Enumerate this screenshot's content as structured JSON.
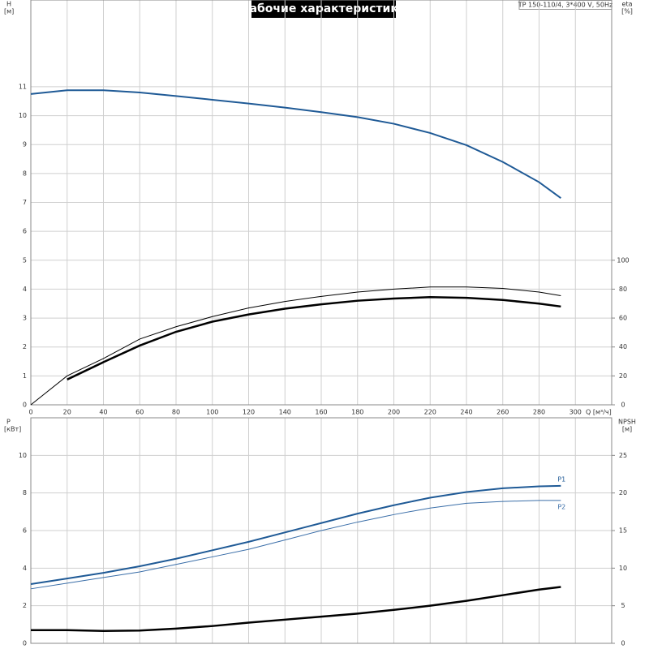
{
  "chart_data": [
    {
      "type": "line",
      "title": "Рабочие характеристики",
      "note": "TP 150-110/4, 3*400 V, 50Hz",
      "xlabel": "Q [м³/ч]",
      "ylabel": "H",
      "yunit": "[м]",
      "y2label": "eta",
      "y2unit": "[%]",
      "x": [
        0,
        20,
        40,
        60,
        80,
        100,
        120,
        140,
        160,
        180,
        200,
        220,
        240,
        260,
        280,
        292
      ],
      "xlim": [
        0,
        320
      ],
      "xticks": [
        0,
        20,
        40,
        60,
        80,
        100,
        120,
        140,
        160,
        180,
        200,
        220,
        240,
        260,
        280,
        300
      ],
      "ylim": [
        0,
        14
      ],
      "yticks": [
        0,
        1,
        2,
        3,
        4,
        5,
        6,
        7,
        8,
        9,
        10,
        11
      ],
      "y2lim": [
        0,
        280
      ],
      "y2ticks": [
        0,
        20,
        40,
        60,
        80,
        100
      ],
      "grid": true,
      "series": [
        {
          "color": "#1f5a96",
          "line_width": 2,
          "values": [
            10.75,
            10.88,
            10.88,
            10.8,
            10.68,
            10.55,
            10.42,
            10.28,
            10.12,
            9.95,
            9.72,
            9.4,
            8.98,
            8.4,
            7.7,
            7.15
          ]
        },
        {
          "color": "#000000",
          "line_width": 1,
          "axis": "y2",
          "values": [
            0,
            20,
            32,
            45.5,
            54,
            61,
            67,
            71.5,
            75,
            78,
            80,
            81.5,
            81.5,
            80.5,
            78,
            75.5
          ]
        },
        {
          "color": "#000000",
          "line_width": 2.5,
          "axis": "y2",
          "values": [
            null,
            17.5,
            29.5,
            41,
            50.5,
            57.5,
            62.5,
            66.5,
            69.5,
            72,
            73.5,
            74.5,
            74,
            72.5,
            70,
            68
          ]
        }
      ]
    },
    {
      "type": "line",
      "ylabel": "P",
      "yunit": "[кВт]",
      "y2label": "NPSH",
      "y2unit": "[м]",
      "x": [
        0,
        20,
        40,
        60,
        80,
        100,
        120,
        140,
        160,
        180,
        200,
        220,
        240,
        260,
        280,
        292
      ],
      "xlim": [
        0,
        320
      ],
      "xticks": [
        0,
        20,
        40,
        60,
        80,
        100,
        120,
        140,
        160,
        180,
        200,
        220,
        240,
        260,
        280,
        300
      ],
      "ylim": [
        0,
        12
      ],
      "yticks": [
        0,
        2,
        4,
        6,
        8,
        10
      ],
      "y2lim": [
        0,
        30
      ],
      "y2ticks": [
        0,
        5,
        10,
        15,
        20,
        25
      ],
      "grid": true,
      "series": [
        {
          "name": "P1",
          "color": "#1f5a96",
          "line_width": 2,
          "values": [
            3.15,
            3.45,
            3.75,
            4.1,
            4.5,
            4.95,
            5.4,
            5.9,
            6.4,
            6.9,
            7.35,
            7.75,
            8.05,
            8.25,
            8.35,
            8.38
          ]
        },
        {
          "name": "P2",
          "color": "#3a6ea8",
          "line_width": 1,
          "values": [
            2.9,
            3.2,
            3.5,
            3.8,
            4.2,
            4.6,
            5.0,
            5.5,
            6.0,
            6.45,
            6.85,
            7.2,
            7.45,
            7.55,
            7.6,
            7.6
          ]
        },
        {
          "color": "#000000",
          "line_width": 2.5,
          "axis": "y2",
          "values": [
            1.75,
            1.75,
            1.65,
            1.7,
            1.95,
            2.3,
            2.75,
            3.15,
            3.55,
            3.95,
            4.45,
            5.0,
            5.65,
            6.4,
            7.15,
            7.5
          ]
        }
      ]
    }
  ]
}
